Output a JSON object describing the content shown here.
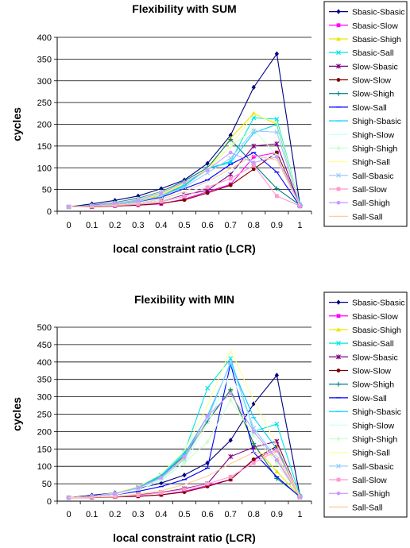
{
  "chart_data": [
    {
      "type": "line",
      "title": "Flexibility with SUM",
      "xlabel": "local constraint ratio (LCR)",
      "ylabel": "cycles",
      "x": [
        0,
        0.1,
        0.2,
        0.3,
        0.4,
        0.5,
        0.6,
        0.7,
        0.8,
        0.9,
        1
      ],
      "x_tick_labels": [
        "0",
        "0.1",
        "0.2",
        "0.3",
        "0.4",
        "0.5",
        "0.6",
        "0.7",
        "0.8",
        "0.9",
        "1"
      ],
      "ylim": [
        0,
        400
      ],
      "y_ticks": [
        0,
        50,
        100,
        150,
        200,
        250,
        300,
        350,
        400
      ],
      "y_tick_labels": [
        "0",
        "50",
        "100",
        "150",
        "200",
        "250",
        "300",
        "350",
        "400"
      ],
      "grid": "horizontal",
      "legend_position": "right",
      "series": [
        {
          "name": "Sbasic-Sbasic",
          "color": "#000080",
          "marker": "diamond",
          "values": [
            10,
            17,
            25,
            35,
            52,
            72,
            110,
            175,
            285,
            362,
            15
          ]
        },
        {
          "name": "Sbasic-Slow",
          "color": "#ff00ff",
          "marker": "square",
          "values": [
            10,
            10,
            12,
            14,
            17,
            28,
            45,
            62,
            125,
            135,
            12
          ]
        },
        {
          "name": "Sbasic-Shigh",
          "color": "#e8e800",
          "marker": "triangle",
          "values": [
            10,
            12,
            17,
            23,
            38,
            62,
            95,
            168,
            225,
            200,
            14
          ]
        },
        {
          "name": "Sbasic-Sall",
          "color": "#00e5e5",
          "marker": "x",
          "values": [
            10,
            12,
            18,
            24,
            33,
            58,
            98,
            115,
            215,
            212,
            15
          ]
        },
        {
          "name": "Slow-Sbasic",
          "color": "#800080",
          "marker": "star",
          "values": [
            10,
            11,
            14,
            18,
            24,
            38,
            48,
            85,
            150,
            155,
            12
          ]
        },
        {
          "name": "Slow-Slow",
          "color": "#800000",
          "marker": "circle",
          "values": [
            10,
            10,
            12,
            14,
            18,
            26,
            42,
            60,
            97,
            135,
            12
          ]
        },
        {
          "name": "Slow-Shigh",
          "color": "#008080",
          "marker": "plus",
          "values": [
            10,
            14,
            20,
            30,
            45,
            70,
            100,
            165,
            108,
            52,
            14
          ]
        },
        {
          "name": "Slow-Sall",
          "color": "#0000ff",
          "marker": "dash",
          "values": [
            10,
            12,
            16,
            22,
            32,
            52,
            72,
            108,
            135,
            90,
            12
          ]
        },
        {
          "name": "Shigh-Sbasic",
          "color": "#00ccff",
          "marker": "dash",
          "values": [
            10,
            12,
            16,
            22,
            35,
            60,
            98,
            112,
            180,
            200,
            14
          ]
        },
        {
          "name": "Shigh-Slow",
          "color": "#ccffff",
          "marker": "none",
          "values": [
            10,
            11,
            14,
            18,
            24,
            40,
            60,
            90,
            120,
            130,
            12
          ]
        },
        {
          "name": "Shigh-Shigh",
          "color": "#ccffcc",
          "marker": "diamond",
          "values": [
            10,
            13,
            19,
            28,
            44,
            66,
            95,
            150,
            188,
            128,
            13
          ]
        },
        {
          "name": "Shigh-Sall",
          "color": "#ffff99",
          "marker": "none",
          "values": [
            10,
            12,
            18,
            26,
            40,
            64,
            98,
            150,
            222,
            205,
            14
          ]
        },
        {
          "name": "Sall-Sbasic",
          "color": "#99ccff",
          "marker": "x",
          "values": [
            10,
            12,
            16,
            23,
            35,
            55,
            88,
            122,
            185,
            182,
            14
          ]
        },
        {
          "name": "Sall-Slow",
          "color": "#ff99cc",
          "marker": "square",
          "values": [
            10,
            11,
            13,
            16,
            22,
            34,
            55,
            75,
            105,
            35,
            12
          ]
        },
        {
          "name": "Sall-Shigh",
          "color": "#cc99ff",
          "marker": "circle",
          "values": [
            10,
            13,
            18,
            26,
            42,
            66,
            95,
            135,
            112,
            125,
            13
          ]
        },
        {
          "name": "Sall-Sall",
          "color": "#ffcc99",
          "marker": "none",
          "values": [
            10,
            11,
            14,
            19,
            28,
            45,
            68,
            98,
            128,
            118,
            12
          ]
        }
      ]
    },
    {
      "type": "line",
      "title": "Flexibility with MIN",
      "xlabel": "local constraint ratio (LCR)",
      "ylabel": "cycles",
      "x": [
        0,
        0.1,
        0.2,
        0.3,
        0.4,
        0.5,
        0.6,
        0.7,
        0.8,
        0.9,
        1
      ],
      "x_tick_labels": [
        "0",
        "0.1",
        "0.2",
        "0.3",
        "0.4",
        "0.5",
        "0.6",
        "0.7",
        "0.8",
        "0.9",
        "1"
      ],
      "ylim": [
        0,
        500
      ],
      "y_ticks": [
        0,
        50,
        100,
        150,
        200,
        250,
        300,
        350,
        400,
        450,
        500
      ],
      "y_tick_labels": [
        "0",
        "50",
        "100",
        "150",
        "200",
        "250",
        "300",
        "350",
        "400",
        "450",
        "500"
      ],
      "grid": "horizontal",
      "legend_position": "right",
      "series": [
        {
          "name": "Sbasic-Sbasic",
          "color": "#000080",
          "marker": "diamond",
          "values": [
            10,
            17,
            24,
            36,
            52,
            75,
            110,
            175,
            280,
            362,
            15
          ]
        },
        {
          "name": "Sbasic-Slow",
          "color": "#ff00ff",
          "marker": "square",
          "values": [
            10,
            10,
            12,
            14,
            18,
            28,
            45,
            62,
            118,
            150,
            12
          ]
        },
        {
          "name": "Sbasic-Shigh",
          "color": "#e8e800",
          "marker": "triangle",
          "values": [
            10,
            14,
            22,
            38,
            70,
            125,
            228,
            320,
            160,
            85,
            14
          ]
        },
        {
          "name": "Sbasic-Sall",
          "color": "#00e5e5",
          "marker": "x",
          "values": [
            10,
            14,
            22,
            40,
            75,
            140,
            325,
            410,
            200,
            222,
            15
          ]
        },
        {
          "name": "Slow-Sbasic",
          "color": "#800080",
          "marker": "star",
          "values": [
            10,
            11,
            14,
            18,
            25,
            36,
            50,
            128,
            155,
            172,
            12
          ]
        },
        {
          "name": "Slow-Slow",
          "color": "#800000",
          "marker": "circle",
          "values": [
            10,
            10,
            12,
            14,
            18,
            26,
            42,
            62,
            120,
            158,
            12
          ]
        },
        {
          "name": "Slow-Shigh",
          "color": "#008080",
          "marker": "plus",
          "values": [
            10,
            14,
            22,
            38,
            72,
            130,
            230,
            320,
            165,
            65,
            14
          ]
        },
        {
          "name": "Slow-Sall",
          "color": "#0000ff",
          "marker": "dash",
          "values": [
            10,
            12,
            18,
            28,
            42,
            62,
            95,
            395,
            140,
            70,
            12
          ]
        },
        {
          "name": "Shigh-Sbasic",
          "color": "#00ccff",
          "marker": "dash",
          "values": [
            10,
            14,
            22,
            40,
            72,
            135,
            245,
            395,
            240,
            150,
            14
          ]
        },
        {
          "name": "Shigh-Slow",
          "color": "#ccffff",
          "marker": "none",
          "values": [
            10,
            12,
            18,
            32,
            58,
            110,
            220,
            370,
            210,
            130,
            12
          ]
        },
        {
          "name": "Shigh-Shigh",
          "color": "#ccffcc",
          "marker": "diamond",
          "values": [
            10,
            14,
            22,
            36,
            62,
            110,
            170,
            290,
            190,
            110,
            13
          ]
        },
        {
          "name": "Shigh-Sall",
          "color": "#ffff99",
          "marker": "none",
          "values": [
            10,
            14,
            24,
            42,
            78,
            145,
            275,
            435,
            290,
            160,
            14
          ]
        },
        {
          "name": "Sall-Sbasic",
          "color": "#99ccff",
          "marker": "x",
          "values": [
            10,
            14,
            22,
            38,
            66,
            120,
            235,
            400,
            210,
            120,
            14
          ]
        },
        {
          "name": "Sall-Slow",
          "color": "#ff99cc",
          "marker": "square",
          "values": [
            10,
            11,
            13,
            17,
            24,
            34,
            50,
            70,
            110,
            145,
            12
          ]
        },
        {
          "name": "Sall-Shigh",
          "color": "#cc99ff",
          "marker": "circle",
          "values": [
            10,
            14,
            22,
            38,
            68,
            128,
            245,
            310,
            200,
            118,
            13
          ]
        },
        {
          "name": "Sall-Sall",
          "color": "#ffcc99",
          "marker": "none",
          "values": [
            10,
            11,
            14,
            20,
            30,
            48,
            72,
            108,
            140,
            130,
            12
          ]
        }
      ]
    }
  ]
}
